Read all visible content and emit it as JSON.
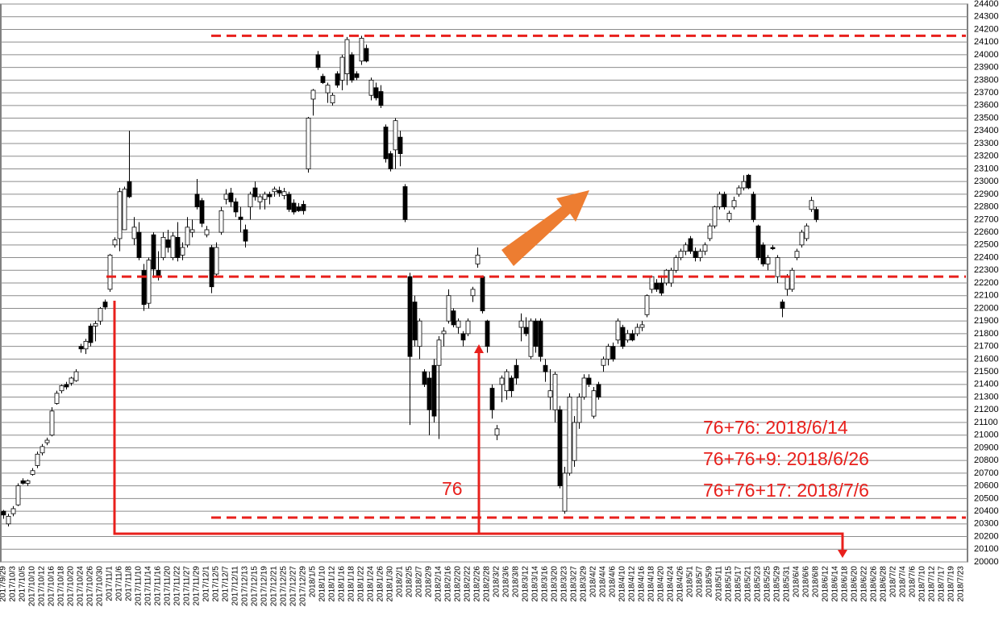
{
  "chart_data": {
    "type": "candlestick",
    "categories": [
      "2017/9/29",
      null,
      "2017/10/3",
      null,
      "2017/10/5",
      null,
      "2017/10/10",
      null,
      "2017/10/12",
      null,
      "2017/10/16",
      null,
      "2017/10/18",
      null,
      "2017/10/20",
      null,
      "2017/10/24",
      null,
      "2017/10/26",
      null,
      "2017/10/30",
      null,
      "2017/11/1",
      null,
      "2017/11/6",
      null,
      "2017/11/8",
      null,
      "2017/11/10",
      null,
      "2017/11/14",
      null,
      "2017/11/16",
      null,
      "2017/11/20",
      null,
      "2017/11/22",
      null,
      "2017/11/27",
      null,
      "2017/11/29",
      null,
      "2017/12/1",
      null,
      "2017/12/5",
      null,
      "2017/12/7",
      null,
      "2017/12/11",
      null,
      "2017/12/13",
      null,
      "2017/12/15",
      null,
      "2017/12/19",
      null,
      "2017/12/21",
      null,
      "2017/12/25",
      null,
      "2017/12/27",
      null,
      "2017/12/29",
      null,
      "2018/1/5",
      null,
      "2018/1/10",
      null,
      "2018/1/12",
      null,
      "2018/1/16",
      null,
      "2018/1/18",
      null,
      "2018/1/22",
      null,
      "2018/1/24",
      null,
      "2018/1/26",
      null,
      "2018/1/30",
      null,
      "2018/2/1",
      null,
      "2018/2/5",
      null,
      "2018/2/7",
      null,
      "2018/2/9",
      null,
      "2018/2/14",
      null,
      "2018/2/16",
      null,
      "2018/2/20",
      null,
      "2018/2/22",
      null,
      "2018/2/26",
      null,
      "2018/2/28",
      null,
      "2018/3/2",
      null,
      "2018/3/6",
      null,
      "2018/3/8",
      null,
      "2018/3/12",
      null,
      "2018/3/14",
      null,
      "2018/3/16",
      null,
      "2018/3/20",
      null,
      "2018/3/23",
      null,
      "2018/3/27",
      null,
      "2018/3/29",
      null,
      "2018/4/2",
      null,
      "2018/4/4",
      null,
      "2018/4/6",
      null,
      "2018/4/10",
      null,
      "2018/4/12",
      null,
      "2018/4/16",
      null,
      "2018/4/18",
      null,
      "2018/4/20",
      null,
      "2018/4/24",
      null,
      "2018/4/26",
      null,
      "2018/5/1",
      null,
      "2018/5/7",
      null,
      "2018/5/9",
      null,
      "2018/5/11",
      null,
      "2018/5/15",
      null,
      "2018/5/17",
      null,
      "2018/5/21",
      null,
      "2018/5/23",
      null,
      "2018/5/25",
      null,
      "2018/5/29",
      null,
      "2018/5/31",
      null,
      "2018/6/4",
      null,
      "2018/6/6",
      null,
      "2018/6/8",
      null,
      "2018/6/12",
      null,
      "2018/6/14",
      null,
      "2018/6/18",
      null,
      "2018/6/20",
      null,
      "2018/6/22",
      null,
      "2018/6/26",
      null,
      "2018/6/28",
      null,
      "2018/7/2",
      null,
      "2018/7/4",
      null,
      "2018/7/6",
      null,
      "2018/7/10",
      null,
      "2018/7/12",
      null,
      "2018/7/17",
      null,
      "2018/7/19",
      null,
      "2018/7/23"
    ],
    "ohlc": [
      [
        20400,
        20410,
        20340,
        20370
      ],
      [
        20300,
        20380,
        20280,
        20360
      ],
      [
        20380,
        20440,
        20360,
        20420
      ],
      [
        20450,
        20620,
        20440,
        20600
      ],
      [
        20640,
        20660,
        20610,
        20620
      ],
      [
        20620,
        20650,
        20600,
        20640
      ],
      [
        20690,
        20740,
        20680,
        20720
      ],
      [
        20760,
        20870,
        20740,
        20850
      ],
      [
        20860,
        20930,
        20840,
        20910
      ],
      [
        20940,
        20980,
        20920,
        20960
      ],
      [
        21000,
        21220,
        20990,
        21190
      ],
      [
        21250,
        21350,
        21240,
        21330
      ],
      [
        21350,
        21400,
        21330,
        21390
      ],
      [
        21400,
        21420,
        21360,
        21380
      ],
      [
        21410,
        21460,
        21390,
        21450
      ],
      [
        21430,
        21520,
        21420,
        21500
      ],
      [
        21700,
        21720,
        21650,
        21680
      ],
      [
        21680,
        21760,
        21640,
        21740
      ],
      [
        21860,
        21880,
        21700,
        21730
      ],
      [
        21860,
        21900,
        21740,
        21880
      ],
      [
        21900,
        22010,
        21870,
        22000
      ],
      [
        22050,
        22070,
        21990,
        22010
      ],
      [
        22150,
        22430,
        22130,
        22420
      ],
      [
        22500,
        22560,
        22480,
        22540
      ],
      [
        22550,
        22950,
        22450,
        22920
      ],
      [
        22620,
        22960,
        22620,
        22940
      ],
      [
        23000,
        23400,
        22870,
        22880
      ],
      [
        22550,
        22720,
        22500,
        22640
      ],
      [
        22600,
        22680,
        22380,
        22400
      ],
      [
        22300,
        22350,
        21980,
        22030
      ],
      [
        22040,
        22400,
        22000,
        22380
      ],
      [
        22580,
        22600,
        22240,
        22310
      ],
      [
        22300,
        22450,
        22220,
        22250
      ],
      [
        22400,
        22600,
        22380,
        22560
      ],
      [
        22540,
        22620,
        22440,
        22480
      ],
      [
        22400,
        22600,
        22380,
        22570
      ],
      [
        22560,
        22680,
        22370,
        22400
      ],
      [
        22420,
        22520,
        22380,
        22480
      ],
      [
        22500,
        22720,
        22480,
        22640
      ],
      [
        22600,
        22700,
        22560,
        22620
      ],
      [
        22900,
        23020,
        22780,
        22800
      ],
      [
        22850,
        22870,
        22640,
        22670
      ],
      [
        22580,
        22650,
        22560,
        22620
      ],
      [
        22480,
        22500,
        22120,
        22170
      ],
      [
        22270,
        22520,
        22250,
        22480
      ],
      [
        22600,
        22800,
        22580,
        22770
      ],
      [
        22860,
        22940,
        22820,
        22900
      ],
      [
        22910,
        22950,
        22800,
        22840
      ],
      [
        22840,
        22870,
        22720,
        22760
      ],
      [
        22720,
        22800,
        22600,
        22700
      ],
      [
        22620,
        22660,
        22480,
        22530
      ],
      [
        22800,
        22920,
        22700,
        22900
      ],
      [
        22950,
        23000,
        22850,
        22880
      ],
      [
        22840,
        22900,
        22780,
        22880
      ],
      [
        22860,
        22920,
        22780,
        22900
      ],
      [
        22900,
        22920,
        22820,
        22880
      ],
      [
        22920,
        22960,
        22880,
        22940
      ],
      [
        22930,
        22960,
        22880,
        22910
      ],
      [
        22890,
        22950,
        22860,
        22920
      ],
      [
        22900,
        22920,
        22760,
        22780
      ],
      [
        22830,
        22860,
        22740,
        22760
      ],
      [
        22800,
        22830,
        22760,
        22770
      ],
      [
        22820,
        22850,
        22740,
        22770
      ],
      [
        23100,
        23510,
        23070,
        23500
      ],
      [
        23650,
        23730,
        23520,
        23720
      ],
      [
        24000,
        24030,
        23880,
        23900
      ],
      [
        23830,
        23850,
        23770,
        23780
      ],
      [
        23700,
        23780,
        23620,
        23760
      ],
      [
        23620,
        23700,
        23600,
        23680
      ],
      [
        23850,
        23870,
        23740,
        23760
      ],
      [
        23800,
        24000,
        23720,
        23980
      ],
      [
        23850,
        24140,
        23760,
        24120
      ],
      [
        24000,
        24020,
        23780,
        23800
      ],
      [
        23850,
        23870,
        23800,
        23820
      ],
      [
        23950,
        24150,
        23920,
        24130
      ],
      [
        24050,
        24080,
        23940,
        23950
      ],
      [
        23680,
        23820,
        23640,
        23800
      ],
      [
        23740,
        23780,
        23640,
        23660
      ],
      [
        23710,
        23760,
        23580,
        23600
      ],
      [
        23430,
        23450,
        23150,
        23180
      ],
      [
        23220,
        23240,
        23080,
        23100
      ],
      [
        23250,
        23500,
        23100,
        23480
      ],
      [
        23350,
        23400,
        23120,
        23220
      ],
      [
        22960,
        22980,
        22680,
        22700
      ],
      [
        22250,
        22280,
        21080,
        21620
      ],
      [
        22050,
        22100,
        21700,
        21750
      ],
      [
        21700,
        21920,
        21600,
        21900
      ],
      [
        21500,
        21520,
        21380,
        21400
      ],
      [
        21450,
        21500,
        21000,
        21200
      ],
      [
        21550,
        21600,
        21100,
        21150
      ],
      [
        21550,
        21780,
        20970,
        21750
      ],
      [
        21800,
        21850,
        21700,
        21820
      ],
      [
        21900,
        22150,
        21880,
        22100
      ],
      [
        21980,
        22000,
        21850,
        21870
      ],
      [
        21850,
        21920,
        21800,
        21900
      ],
      [
        21800,
        21820,
        21700,
        21750
      ],
      [
        21800,
        21920,
        21780,
        21900
      ],
      [
        22100,
        22170,
        22050,
        22150
      ],
      [
        22350,
        22480,
        22320,
        22420
      ],
      [
        22250,
        22260,
        21960,
        21980
      ],
      [
        21900,
        21910,
        21650,
        21700
      ],
      [
        21370,
        21400,
        21130,
        21200
      ],
      [
        21000,
        21080,
        20960,
        21050
      ],
      [
        21400,
        21470,
        21260,
        21450
      ],
      [
        21350,
        21520,
        21280,
        21500
      ],
      [
        21450,
        21470,
        21300,
        21350
      ],
      [
        21550,
        21600,
        21400,
        21450
      ],
      [
        21850,
        21960,
        21740,
        21900
      ],
      [
        21850,
        21930,
        21780,
        21800
      ],
      [
        21620,
        21920,
        21600,
        21900
      ],
      [
        21900,
        21920,
        21650,
        21700
      ],
      [
        21900,
        21920,
        21580,
        21620
      ],
      [
        21550,
        21600,
        21420,
        21500
      ],
      [
        21300,
        21520,
        21200,
        21350
      ],
      [
        21200,
        21500,
        21100,
        21480
      ],
      [
        21200,
        21230,
        20580,
        20600
      ],
      [
        20400,
        20750,
        20380,
        20700
      ],
      [
        20700,
        21330,
        20680,
        21300
      ],
      [
        20800,
        21150,
        20750,
        21100
      ],
      [
        21100,
        21330,
        21050,
        21300
      ],
      [
        21300,
        21480,
        21280,
        21450
      ],
      [
        21450,
        21480,
        21380,
        21400
      ],
      [
        21150,
        21380,
        21130,
        21350
      ],
      [
        21400,
        21420,
        21280,
        21300
      ],
      [
        21550,
        21620,
        21500,
        21600
      ],
      [
        21600,
        21720,
        21550,
        21700
      ],
      [
        21700,
        21730,
        21580,
        21600
      ],
      [
        21750,
        21920,
        21720,
        21900
      ],
      [
        21850,
        21870,
        21680,
        21700
      ],
      [
        21750,
        21830,
        21730,
        21800
      ],
      [
        21800,
        21830,
        21740,
        21750
      ],
      [
        21800,
        21880,
        21780,
        21850
      ],
      [
        21850,
        21900,
        21820,
        21870
      ],
      [
        21950,
        22110,
        21930,
        22100
      ],
      [
        22150,
        22260,
        22120,
        22250
      ],
      [
        22200,
        22230,
        22130,
        22150
      ],
      [
        22200,
        22260,
        22100,
        22120
      ],
      [
        22200,
        22310,
        22180,
        22300
      ],
      [
        22200,
        22320,
        22170,
        22300
      ],
      [
        22300,
        22420,
        22280,
        22400
      ],
      [
        22400,
        22470,
        22380,
        22450
      ],
      [
        22450,
        22520,
        22420,
        22500
      ],
      [
        22550,
        22570,
        22430,
        22450
      ],
      [
        22450,
        22480,
        22370,
        22400
      ],
      [
        22400,
        22470,
        22370,
        22450
      ],
      [
        22450,
        22520,
        22420,
        22500
      ],
      [
        22550,
        22670,
        22530,
        22650
      ],
      [
        22650,
        22810,
        22630,
        22800
      ],
      [
        22800,
        22920,
        22780,
        22900
      ],
      [
        22900,
        22920,
        22780,
        22800
      ],
      [
        22700,
        22770,
        22680,
        22750
      ],
      [
        22800,
        22880,
        22780,
        22850
      ],
      [
        22900,
        22970,
        22880,
        22950
      ],
      [
        22950,
        23050,
        22930,
        23000
      ],
      [
        23050,
        23060,
        22940,
        22950
      ],
      [
        22900,
        22920,
        22680,
        22700
      ],
      [
        22650,
        22660,
        22380,
        22400
      ],
      [
        22500,
        22520,
        22330,
        22350
      ],
      [
        22350,
        22420,
        22300,
        22400
      ],
      [
        22480,
        22500,
        22460,
        22470
      ],
      [
        22250,
        22420,
        22200,
        22400
      ],
      [
        22050,
        22070,
        21930,
        22000
      ],
      [
        22150,
        22270,
        22100,
        22250
      ],
      [
        22150,
        22320,
        22130,
        22300
      ],
      [
        22400,
        22470,
        22380,
        22450
      ],
      [
        22500,
        22620,
        22480,
        22600
      ],
      [
        22550,
        22670,
        22530,
        22650
      ],
      [
        22780,
        22880,
        22760,
        22850
      ],
      [
        22780,
        22800,
        22680,
        22700
      ],
      null,
      null,
      null,
      null,
      null,
      null,
      null,
      null,
      null,
      null,
      null,
      null,
      null,
      null,
      null,
      null,
      null,
      null,
      null,
      null,
      null,
      null,
      null,
      null,
      null,
      null,
      null,
      null,
      null,
      null
    ],
    "up_color": "#ffffff",
    "down_color": "#000000",
    "ylim": [
      20000,
      24400
    ],
    "yticks": [
      20000,
      20100,
      20200,
      20300,
      20400,
      20500,
      20600,
      20700,
      20800,
      20900,
      21000,
      21100,
      21200,
      21300,
      21400,
      21500,
      21600,
      21700,
      21800,
      21900,
      22000,
      22100,
      22200,
      22300,
      22400,
      22500,
      22600,
      22700,
      22800,
      22900,
      23000,
      23100,
      23200,
      23300,
      23400,
      23500,
      23600,
      23700,
      23800,
      23900,
      24000,
      24100,
      24200,
      24300,
      24400
    ],
    "grid": true,
    "levels": [
      24150,
      22250,
      20350
    ],
    "level_color": "#e8201c",
    "annotations": [
      "76",
      "76+76: 2018/6/14",
      "76+76+9: 2018/6/26",
      "76+76+17: 2018/7/6"
    ]
  }
}
